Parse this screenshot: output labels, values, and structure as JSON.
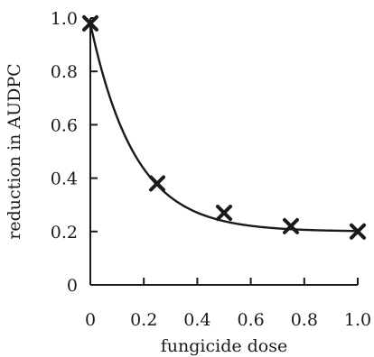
{
  "chart_data": {
    "type": "scatter",
    "xlabel": "fungicide dose",
    "ylabel": "reduction in AUDPC",
    "xlim": [
      0,
      1.0
    ],
    "ylim": [
      0,
      1.0
    ],
    "x_ticks": [
      "0",
      "0.2",
      "0.4",
      "0.6",
      "0.8",
      "1.0"
    ],
    "y_ticks": [
      "0",
      "0.2",
      "0.4",
      "0.6",
      "0.8",
      "1.0"
    ],
    "grid": false,
    "legend": "none",
    "series": [
      {
        "marker": "x",
        "x": [
          0,
          0.25,
          0.5,
          0.75,
          1.0
        ],
        "y": [
          0.98,
          0.38,
          0.27,
          0.22,
          0.2
        ]
      }
    ],
    "fit_curve": {
      "form": "asymptote + (start - asymptote) * exp(-rate * dose)",
      "start": 0.98,
      "asymptote": 0.2,
      "rate": 6.0
    },
    "colors": {
      "axis": "#1a1a1a",
      "marker": "#1a1a1a",
      "curve": "#1a1a1a"
    }
  }
}
